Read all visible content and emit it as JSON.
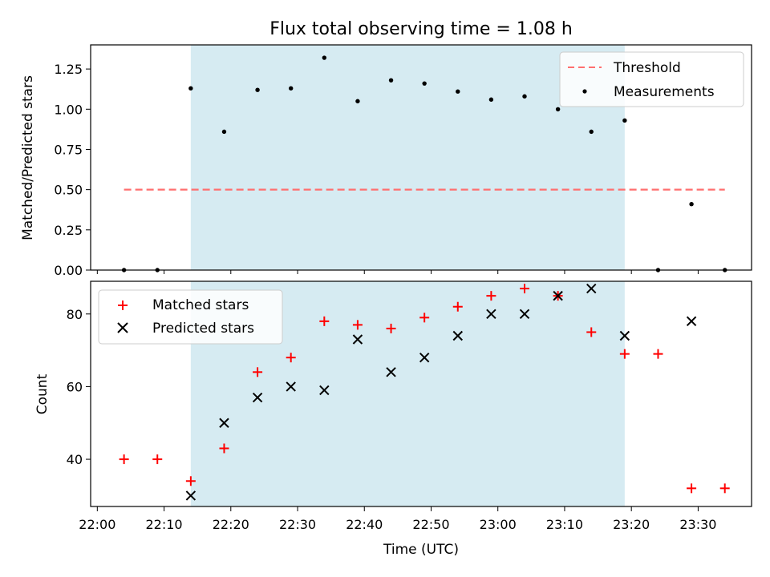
{
  "chart_data": [
    {
      "type": "scatter",
      "title": "Flux total observing time = 1.08 h",
      "xlabel": "",
      "ylabel": "Matched/Predicted stars",
      "ylim": [
        0,
        1.4
      ],
      "yticks": [
        "0.00",
        "0.25",
        "0.50",
        "0.75",
        "1.00",
        "1.25"
      ],
      "x_range": [
        "21:59",
        "23:38"
      ],
      "legend_position": "top-right",
      "shaded_span": {
        "x": [
          "22:14",
          "23:19"
        ],
        "color": "#add8e6"
      },
      "series": [
        {
          "name": "Threshold",
          "style": "dashed-line",
          "color": "#ff6f6f",
          "x": [
            "22:04",
            "23:34"
          ],
          "values": [
            0.5,
            0.5
          ]
        },
        {
          "name": "Measurements",
          "style": "dot",
          "color": "#000000",
          "x": [
            "22:04",
            "22:09",
            "22:14",
            "22:19",
            "22:24",
            "22:29",
            "22:34",
            "22:39",
            "22:44",
            "22:49",
            "22:54",
            "22:59",
            "23:04",
            "23:09",
            "23:14",
            "23:19",
            "23:24",
            "23:29",
            "23:34"
          ],
          "values": [
            0.0,
            0.0,
            1.13,
            0.86,
            1.12,
            1.13,
            1.32,
            1.05,
            1.18,
            1.16,
            1.11,
            1.06,
            1.08,
            1.0,
            0.86,
            0.93,
            0.0,
            0.41,
            0.0
          ]
        }
      ]
    },
    {
      "type": "scatter",
      "title": "",
      "xlabel": "Time (UTC)",
      "ylabel": "Count",
      "ylim": [
        27,
        89
      ],
      "yticks": [
        "40",
        "60",
        "80"
      ],
      "xticks": [
        "22:00",
        "22:10",
        "22:20",
        "22:30",
        "22:40",
        "22:50",
        "23:00",
        "23:10",
        "23:20",
        "23:30"
      ],
      "x_range": [
        "21:59",
        "23:38"
      ],
      "legend_position": "top-left",
      "shaded_span": {
        "x": [
          "22:14",
          "23:19"
        ],
        "color": "#add8e6"
      },
      "series": [
        {
          "name": "Matched stars",
          "marker": "+",
          "color": "#ff0000",
          "x": [
            "22:04",
            "22:09",
            "22:14",
            "22:19",
            "22:24",
            "22:29",
            "22:34",
            "22:39",
            "22:44",
            "22:49",
            "22:54",
            "22:59",
            "23:04",
            "23:09",
            "23:14",
            "23:19",
            "23:24",
            "23:29",
            "23:34"
          ],
          "values": [
            40,
            40,
            34,
            43,
            64,
            68,
            78,
            77,
            76,
            79,
            82,
            85,
            87,
            85,
            75,
            69,
            69,
            32,
            32
          ]
        },
        {
          "name": "Predicted stars",
          "marker": "x",
          "color": "#000000",
          "x": [
            "22:14",
            "22:19",
            "22:24",
            "22:29",
            "22:34",
            "22:39",
            "22:44",
            "22:49",
            "22:54",
            "22:59",
            "23:04",
            "23:09",
            "23:14",
            "23:19",
            "23:29"
          ],
          "values": [
            30,
            50,
            57,
            60,
            59,
            73,
            64,
            68,
            74,
            80,
            80,
            85,
            87,
            74,
            78
          ]
        }
      ]
    }
  ]
}
